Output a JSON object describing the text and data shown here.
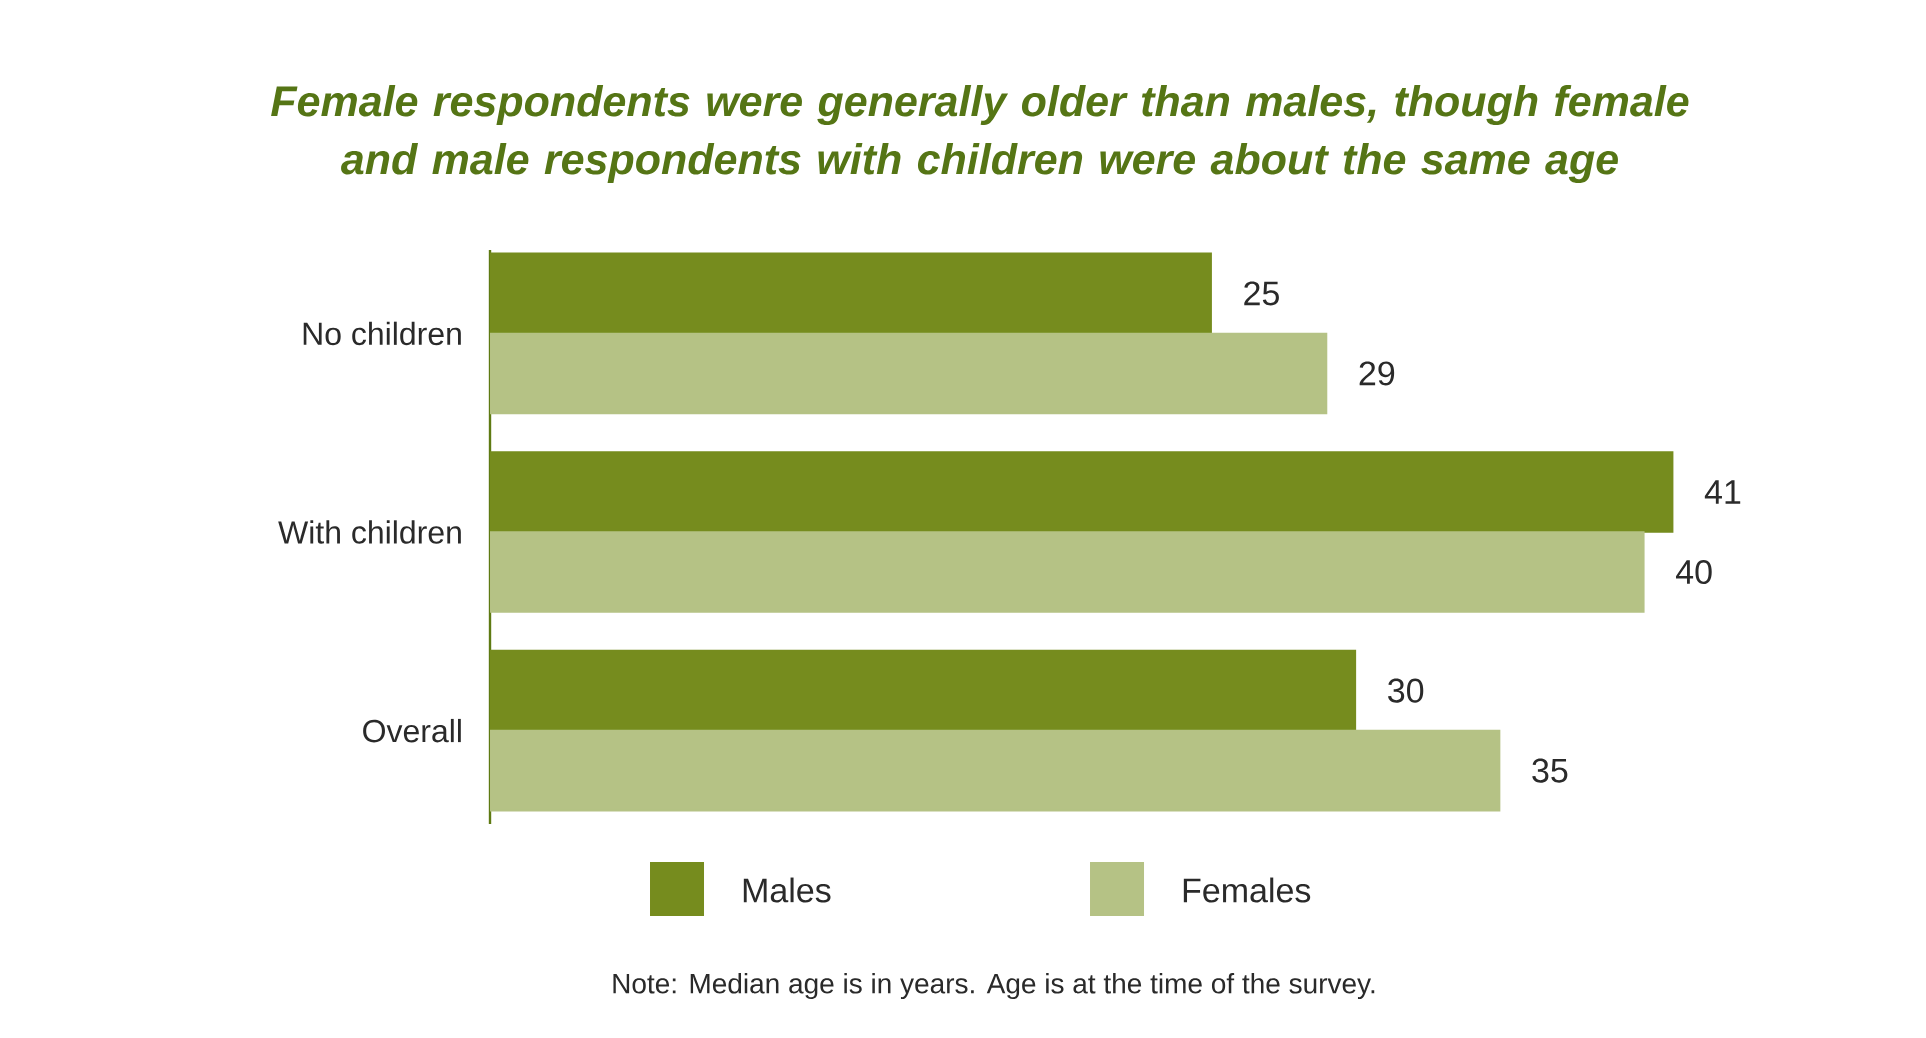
{
  "chart_data": {
    "type": "bar",
    "orientation": "horizontal",
    "title": "Female respondents were generally older than males, though female and male respondents with children were about the same age",
    "categories": [
      "No children",
      "With children",
      "Overall"
    ],
    "series": [
      {
        "name": "Males",
        "color": "#768c1e",
        "values": [
          25,
          41,
          30
        ]
      },
      {
        "name": "Females",
        "color": "#b5c285",
        "values": [
          29,
          40,
          35
        ]
      }
    ],
    "data_labels": true,
    "legend": "bottom",
    "annotations": [
      "Note: Median age is in years. Age is at the time of the survey."
    ]
  }
}
